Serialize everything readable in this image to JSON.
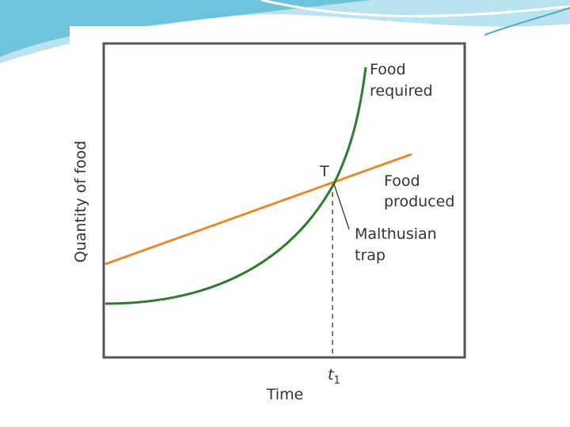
{
  "diagram": {
    "y_axis_label": "Quantity of food",
    "x_axis_label": "Time",
    "curves": [
      {
        "label_lines": [
          "Food",
          "required"
        ]
      },
      {
        "label_lines": [
          "Food",
          "produced"
        ]
      }
    ],
    "intersection_label": "T",
    "annotation_lines": [
      "Malthusian",
      "trap"
    ],
    "time_marker": {
      "symbol": "t",
      "subscript": "1"
    }
  }
}
